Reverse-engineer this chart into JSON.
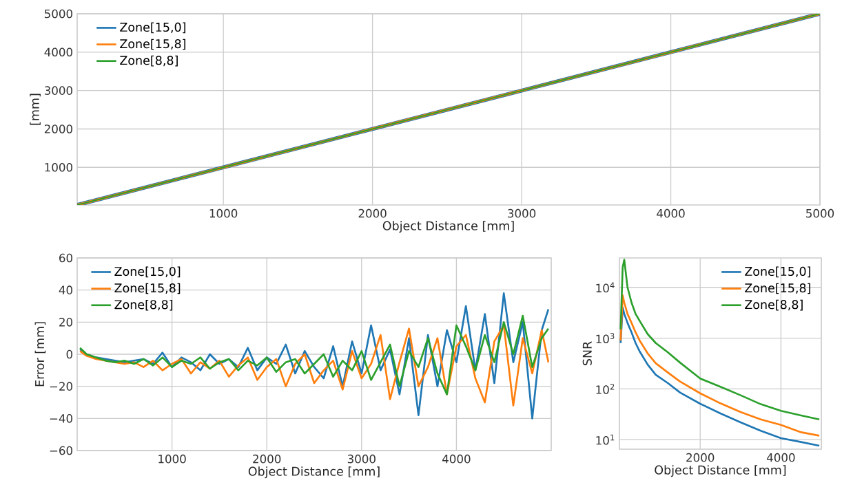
{
  "chart_data": [
    {
      "type": "line",
      "xlabel": "Object Distance [mm]",
      "ylabel": "[mm]",
      "x": [
        20,
        1000,
        2000,
        3000,
        4000,
        5000
      ],
      "series": [
        {
          "name": "Zone[15,0]",
          "color": "#1f77b4",
          "values": [
            20,
            1000,
            2000,
            3000,
            4000,
            5000
          ]
        },
        {
          "name": "Zone[15,8]",
          "color": "#ff7f0e",
          "values": [
            20,
            1000,
            2000,
            3000,
            4000,
            5000
          ]
        },
        {
          "name": "Zone[8,8]",
          "color": "#2ca02c",
          "values": [
            20,
            1000,
            2000,
            3000,
            4000,
            5000
          ]
        }
      ],
      "xlim": [
        20,
        5000
      ],
      "ylim": [
        20,
        5000
      ],
      "xticks": [
        1000,
        2000,
        3000,
        4000,
        5000
      ],
      "yticks": [
        1000,
        2000,
        3000,
        4000,
        5000
      ],
      "grid": true,
      "legend": "top left"
    },
    {
      "type": "line",
      "xlabel": "Object Distance [mm]",
      "ylabel": "Error [mm]",
      "x": [
        30,
        100,
        200,
        300,
        400,
        500,
        600,
        700,
        800,
        900,
        1000,
        1100,
        1200,
        1300,
        1400,
        1500,
        1600,
        1700,
        1800,
        1900,
        2000,
        2100,
        2200,
        2300,
        2400,
        2500,
        2600,
        2700,
        2800,
        2900,
        3000,
        3100,
        3200,
        3300,
        3400,
        3500,
        3600,
        3700,
        3800,
        3900,
        4000,
        4100,
        4200,
        4300,
        4400,
        4500,
        4600,
        4700,
        4800,
        4900,
        4970
      ],
      "series": [
        {
          "name": "Zone[15,0]",
          "color": "#1f77b4",
          "values": [
            3,
            0,
            -2,
            -3,
            -4,
            -5,
            -4,
            -3,
            -6,
            1,
            -8,
            -2,
            -5,
            -10,
            0,
            -6,
            -3,
            -8,
            4,
            -10,
            -2,
            -6,
            6,
            -12,
            2,
            -8,
            -15,
            5,
            -20,
            8,
            -12,
            18,
            -10,
            3,
            -25,
            10,
            -38,
            12,
            -20,
            15,
            -5,
            30,
            -10,
            25,
            -18,
            38,
            -5,
            20,
            -40,
            15,
            28
          ]
        },
        {
          "name": "Zone[15,8]",
          "color": "#ff7f0e",
          "values": [
            2,
            -1,
            -3,
            -4,
            -5,
            -6,
            -5,
            -8,
            -4,
            -10,
            -6,
            -3,
            -12,
            -5,
            -9,
            -4,
            -14,
            -7,
            -2,
            -16,
            -8,
            -3,
            -20,
            -6,
            0,
            -18,
            -10,
            -4,
            -22,
            2,
            -15,
            -6,
            12,
            -28,
            -5,
            16,
            -20,
            -8,
            10,
            -25,
            5,
            12,
            -15,
            -30,
            8,
            18,
            -32,
            10,
            -12,
            15,
            -5
          ]
        },
        {
          "name": "Zone[8,8]",
          "color": "#2ca02c",
          "values": [
            4,
            0,
            -2,
            -4,
            -5,
            -4,
            -6,
            -3,
            -7,
            -2,
            -8,
            -4,
            -6,
            -2,
            -9,
            -5,
            -3,
            -10,
            -4,
            -7,
            -2,
            -11,
            -5,
            -3,
            -12,
            -6,
            0,
            -14,
            -4,
            -10,
            2,
            -16,
            -5,
            6,
            -20,
            2,
            -8,
            10,
            -12,
            -25,
            18,
            5,
            -10,
            12,
            -5,
            20,
            0,
            24,
            -8,
            10,
            16
          ]
        }
      ],
      "xlim": [
        0,
        5000
      ],
      "ylim": [
        -60,
        60
      ],
      "xticks": [
        1000,
        2000,
        3000,
        4000
      ],
      "yticks": [
        {
          "value": -60,
          "label": "−60"
        },
        {
          "value": -40,
          "label": "−40"
        },
        {
          "value": -20,
          "label": "−20"
        },
        0,
        20,
        40,
        60
      ],
      "grid": true,
      "legend": "top left"
    },
    {
      "type": "line",
      "xlabel": "Object Distance [mm]",
      "ylabel": "SNR",
      "log": "y",
      "x": [
        30,
        80,
        120,
        200,
        300,
        400,
        500,
        700,
        900,
        1200,
        1500,
        2000,
        2500,
        3000,
        3500,
        4000,
        4500,
        4950
      ],
      "series": [
        {
          "name": "Zone[15,0]",
          "color": "#1f77b4",
          "values": [
            800,
            4000,
            3000,
            2000,
            1300,
            800,
            550,
            300,
            190,
            130,
            85,
            51,
            33,
            22,
            15,
            10.7,
            9,
            7.6
          ]
        },
        {
          "name": "Zone[15,8]",
          "color": "#ff7f0e",
          "values": [
            900,
            7000,
            5000,
            3000,
            2000,
            1300,
            900,
            500,
            320,
            210,
            140,
            82,
            52,
            35,
            25,
            19.5,
            14,
            12
          ]
        },
        {
          "name": "Zone[8,8]",
          "color": "#2ca02c",
          "values": [
            1500,
            25000,
            35000,
            10000,
            5000,
            3000,
            2200,
            1200,
            800,
            525,
            330,
            160,
            110,
            75,
            50,
            37,
            30,
            25
          ]
        }
      ],
      "xlim": [
        0,
        5000
      ],
      "ylim": [
        6.5,
        38000
      ],
      "xticks": [
        2000,
        4000
      ],
      "yticks": [
        {
          "value": 10,
          "label": "10$^{1}$"
        },
        {
          "value": 100,
          "label": "10$^{2}$"
        },
        {
          "value": 1000,
          "label": "10$^{3}$"
        },
        {
          "value": 10000,
          "label": "10$^{4}$"
        }
      ],
      "grid": true,
      "legend": "top right"
    }
  ]
}
